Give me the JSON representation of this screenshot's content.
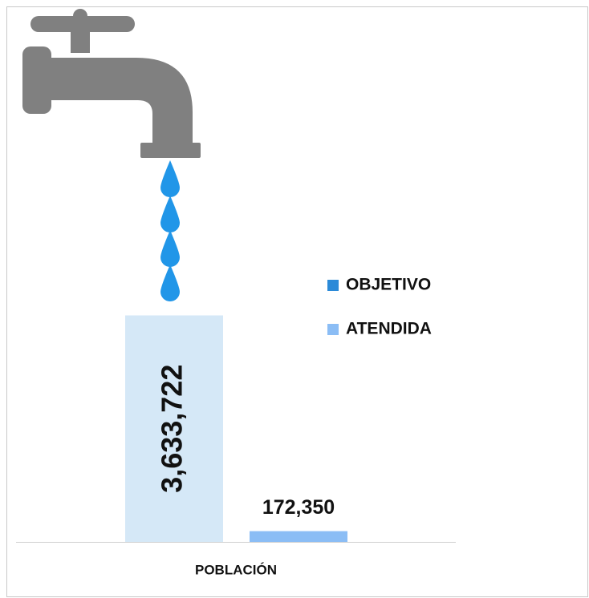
{
  "chart_data": {
    "type": "bar",
    "categories": [
      "POBLACIÓN"
    ],
    "series": [
      {
        "name": "OBJETIVO",
        "color": "#2b8ad8",
        "opacity": 0.2,
        "values": [
          3633722
        ],
        "value_labels": [
          "3,633,722"
        ]
      },
      {
        "name": "ATENDIDA",
        "color": "#8bbdf5",
        "values": [
          172350
        ],
        "value_labels": [
          "172,350"
        ]
      }
    ],
    "ylim": [
      0,
      4000000
    ]
  }
}
